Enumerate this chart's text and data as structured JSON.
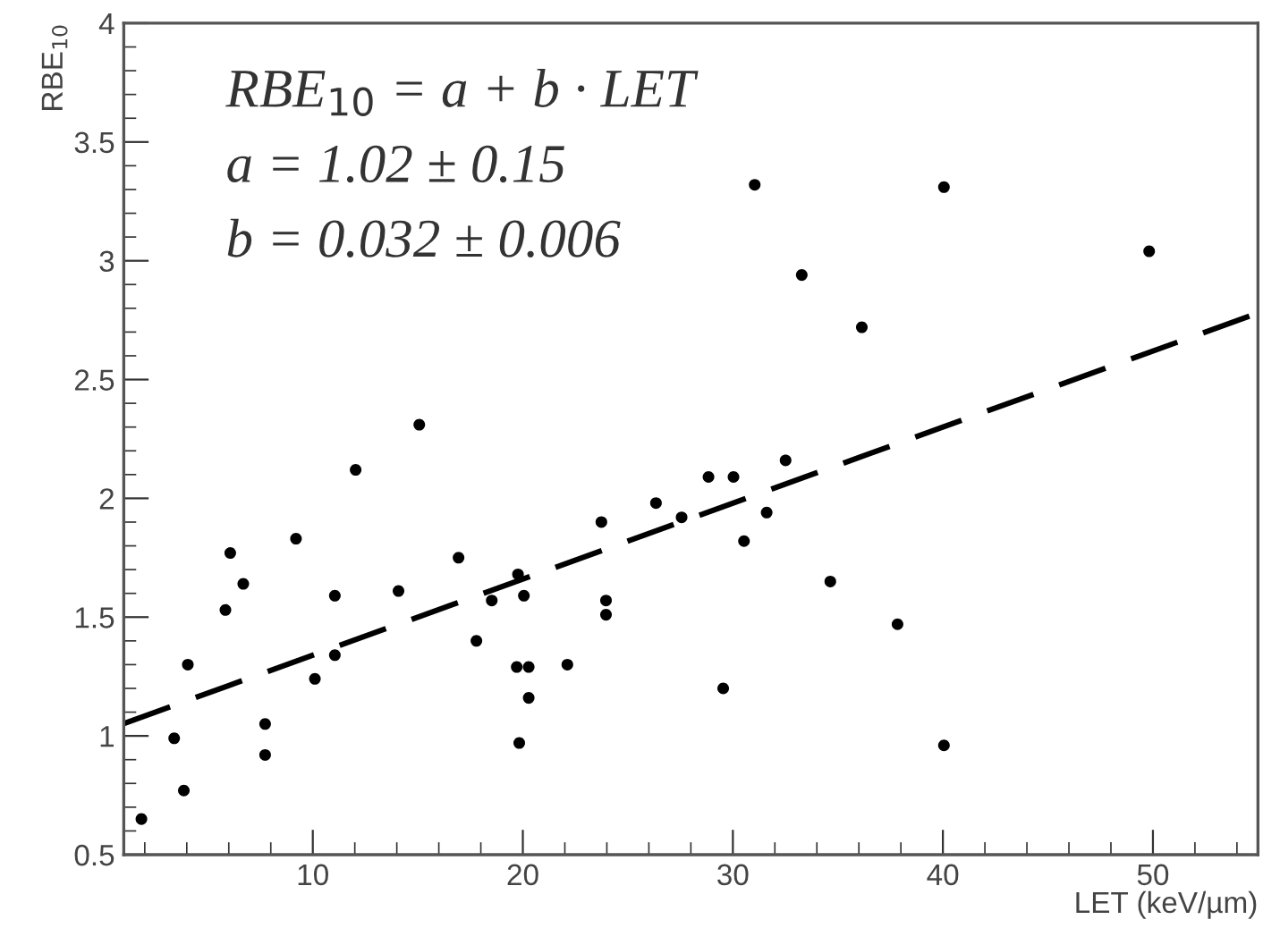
{
  "chart_data": {
    "type": "scatter",
    "xlabel": "LET (keV/µm)",
    "ylabel": "RBE$_{10}$",
    "xlim": [
      1,
      55
    ],
    "xticks": [
      10,
      20,
      30,
      40,
      50
    ],
    "ylim": [
      0.5,
      4
    ],
    "yticks": [
      0.5,
      1,
      1.5,
      2,
      2.5,
      3,
      3.5,
      4
    ],
    "grid": false,
    "legend": false,
    "annotations": [
      "RBE$_{10}$ = a + b · LET",
      "a = 1.02 ± 0.15",
      "b = 0.032 ± 0.006"
    ],
    "series": [
      {
        "color": "#000000",
        "marker": "circle",
        "x": [
          1.84,
          3.4,
          3.86,
          4.05,
          5.84,
          6.07,
          6.69,
          7.73,
          7.73,
          9.2,
          10.1,
          11.05,
          11.05,
          12.04,
          14.08,
          15.07,
          16.94,
          17.79,
          18.52,
          19.77,
          20.05,
          19.71,
          20.28,
          20.28,
          19.83,
          22.12,
          23.74,
          23.96,
          23.96,
          26.34,
          27.56,
          28.84,
          30.03,
          32.51,
          30.53,
          31.61,
          34.64,
          37.84,
          29.54,
          40.05,
          31.04,
          40.05,
          33.28,
          36.14,
          49.82
        ],
        "values": [
          0.65,
          0.99,
          0.77,
          1.3,
          1.53,
          1.77,
          1.64,
          1.05,
          0.92,
          1.83,
          1.24,
          1.59,
          1.34,
          2.12,
          1.61,
          2.31,
          1.75,
          1.4,
          1.57,
          1.68,
          1.59,
          1.29,
          1.29,
          1.16,
          0.97,
          1.3,
          1.9,
          1.57,
          1.51,
          1.98,
          1.92,
          2.09,
          2.09,
          2.16,
          1.82,
          1.94,
          1.65,
          1.47,
          1.2,
          0.96,
          3.32,
          3.31,
          2.94,
          2.72,
          3.04
        ]
      },
      {
        "type": "line",
        "color": "#000000",
        "marker": "none",
        "line_style": "dashed",
        "x": [
          1,
          55
        ],
        "values": [
          1.052,
          2.78
        ]
      }
    ]
  }
}
